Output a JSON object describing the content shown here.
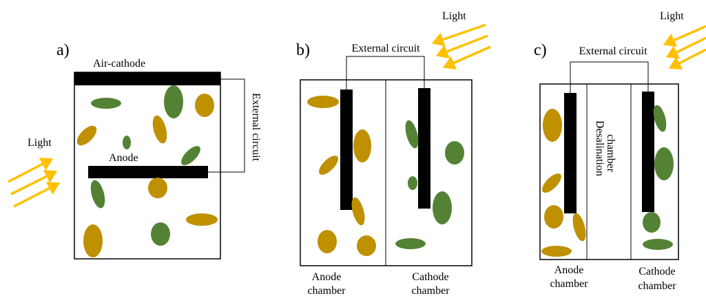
{
  "panels": [
    {
      "label": "a)",
      "light": "Light",
      "top_electrode": "Air-cathode",
      "anode": "Anode",
      "circuit": "External circuit"
    },
    {
      "label": "b)",
      "light": "Light",
      "circuit": "External circuit",
      "chambers": [
        [
          "Anode",
          "chamber"
        ],
        [
          "Cathode",
          "chamber"
        ]
      ]
    },
    {
      "label": "c)",
      "light": "Light",
      "circuit": "External circuit",
      "middle_chamber": [
        "Desalination",
        "chamber"
      ],
      "chambers": [
        [
          "Anode",
          "chamber"
        ],
        [
          "Cathode",
          "chamber"
        ]
      ]
    }
  ]
}
